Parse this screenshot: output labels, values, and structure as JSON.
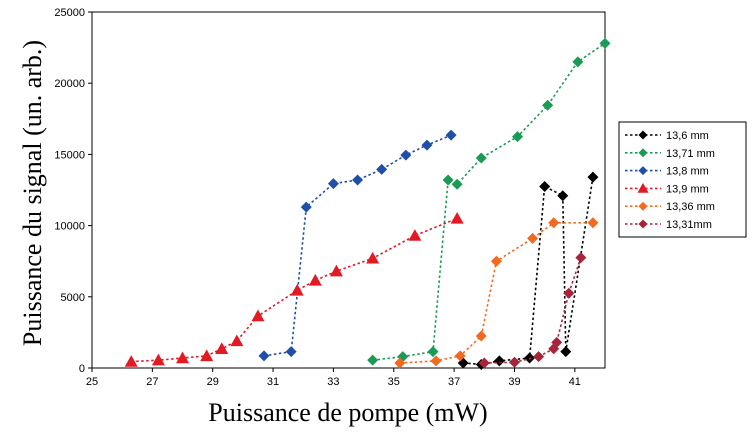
{
  "chart_data": {
    "type": "line",
    "xlabel": "Puissance de pompe (mW)",
    "ylabel": "Puissance du signal (un. arb.)",
    "xlim": [
      25,
      42
    ],
    "ylim": [
      0,
      25000
    ],
    "xticks": [
      "25",
      "27",
      "29",
      "31",
      "33",
      "35",
      "37",
      "39",
      "41"
    ],
    "yticks": [
      "0",
      "5000",
      "10000",
      "15000",
      "20000",
      "25000"
    ],
    "grid": false,
    "legend_position": "right",
    "series": [
      {
        "name": "13,6 mm",
        "color": "#000000",
        "marker": "diamond",
        "points": [
          [
            37.3,
            350
          ],
          [
            37.9,
            250
          ],
          [
            38.5,
            500
          ],
          [
            39.5,
            700
          ],
          [
            40.0,
            12750
          ],
          [
            40.6,
            12100
          ],
          [
            40.7,
            1150
          ],
          [
            41.6,
            13400
          ]
        ]
      },
      {
        "name": "13,71 mm",
        "color": "#1a9b55",
        "marker": "diamond",
        "points": [
          [
            34.3,
            550
          ],
          [
            35.3,
            800
          ],
          [
            36.3,
            1150
          ],
          [
            36.8,
            13200
          ],
          [
            37.1,
            12900
          ],
          [
            37.9,
            14750
          ],
          [
            39.1,
            16250
          ],
          [
            40.1,
            18450
          ],
          [
            41.1,
            21500
          ],
          [
            42.0,
            22800
          ]
        ]
      },
      {
        "name": "13,8 mm",
        "color": "#1f4fa8",
        "marker": "diamond",
        "points": [
          [
            30.7,
            850
          ],
          [
            31.6,
            1150
          ],
          [
            32.1,
            11300
          ],
          [
            33.0,
            12950
          ],
          [
            33.8,
            13200
          ],
          [
            34.6,
            13950
          ],
          [
            35.4,
            14950
          ],
          [
            36.1,
            15650
          ],
          [
            36.9,
            16350
          ]
        ]
      },
      {
        "name": "13,9 mm",
        "color": "#e21a23",
        "marker": "triangle",
        "points": [
          [
            26.3,
            450
          ],
          [
            27.2,
            550
          ],
          [
            28.0,
            700
          ],
          [
            28.8,
            850
          ],
          [
            29.3,
            1350
          ],
          [
            29.8,
            1900
          ],
          [
            30.5,
            3650
          ],
          [
            31.8,
            5450
          ],
          [
            32.4,
            6150
          ],
          [
            33.1,
            6800
          ],
          [
            34.3,
            7700
          ],
          [
            35.7,
            9300
          ],
          [
            37.1,
            10500
          ]
        ]
      },
      {
        "name": "13,36 mm",
        "color": "#f26a1f",
        "marker": "diamond",
        "points": [
          [
            35.2,
            350
          ],
          [
            36.4,
            500
          ],
          [
            37.2,
            850
          ],
          [
            37.9,
            2250
          ],
          [
            38.4,
            7500
          ],
          [
            39.6,
            9100
          ],
          [
            40.3,
            10200
          ],
          [
            41.6,
            10200
          ]
        ]
      },
      {
        "name": "13,31mm",
        "color": "#a8243a",
        "marker": "diamond",
        "points": [
          [
            38.0,
            350
          ],
          [
            39.0,
            400
          ],
          [
            39.8,
            800
          ],
          [
            40.3,
            1350
          ],
          [
            40.4,
            1800
          ],
          [
            40.8,
            5250
          ],
          [
            41.2,
            7750
          ]
        ]
      }
    ]
  }
}
